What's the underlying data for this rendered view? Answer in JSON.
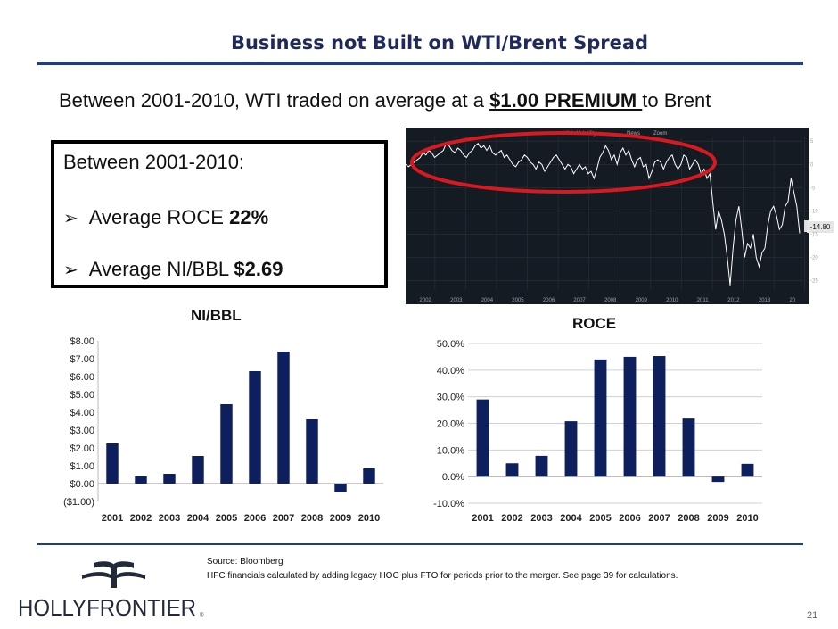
{
  "title": "Business not Built on WTI/Brent Spread",
  "subtitle": {
    "prefix": "Between 2001-2010, WTI traded on average at a ",
    "highlight": "$1.00 PREMIUM ",
    "suffix": "to Brent"
  },
  "kpi": {
    "heading": "Between 2001-2010:",
    "items": [
      {
        "label": "Average ROCE ",
        "value": "22%"
      },
      {
        "label": "Average NI/BBL ",
        "value": "$2.69"
      }
    ]
  },
  "colors": {
    "bar": "#0d1f5c",
    "title_rule": "#1f3c88",
    "highlight_ellipse": "#d8191f",
    "spread_bg": "#151b22",
    "spread_line": "#ffffff"
  },
  "spread_chart": {
    "legend": [
      "Hide Volatility",
      "News",
      "Zoom"
    ],
    "last_value_label": "-14.80",
    "x_ticks": [
      "2002",
      "2003",
      "2004",
      "2005",
      "2006",
      "2007",
      "2008",
      "2009",
      "2010",
      "2011",
      "2012",
      "2013",
      "20"
    ],
    "y_ticks": [
      "5",
      "0",
      "-5",
      "-10",
      "-15",
      "-20",
      "-25"
    ]
  },
  "footer": {
    "source": "Source: Bloomberg",
    "note": "HFC financials calculated by adding legacy HOC plus FTO for periods prior to the merger. See page 39 for calculations.",
    "logo_text": "HOLLYFRONTIER",
    "page_number": "21"
  },
  "chart_data": [
    {
      "type": "line",
      "name": "spread",
      "x_start": 2001.0,
      "x_end": 2013.9,
      "ylim": [
        -27,
        6
      ],
      "values": [
        0,
        -0.5,
        0,
        0.5,
        1,
        1.5,
        2.5,
        2,
        3,
        2.5,
        1.5,
        2,
        2.5,
        3,
        4.5,
        4,
        3,
        2.5,
        3.5,
        3,
        2,
        1.5,
        2.5,
        3,
        4,
        4.5,
        3.5,
        4,
        3,
        4,
        2.5,
        2,
        2.5,
        3,
        1.5,
        2,
        1,
        0,
        -0.5,
        0.5,
        1,
        2,
        1.5,
        0.5,
        0,
        -1,
        0.5,
        0,
        -1.5,
        -0.5,
        0.5,
        1.5,
        2,
        1,
        0,
        -1,
        0,
        -0.5,
        -2,
        -1,
        0,
        -1,
        -0.5,
        -2,
        -1.5,
        -3,
        -1,
        1.5,
        2.5,
        4,
        3,
        1,
        2,
        0,
        2.5,
        3.5,
        2,
        3,
        1,
        -0.5,
        1,
        1.5,
        -0.5,
        0,
        -3,
        -1.5,
        0.5,
        1,
        0.5,
        -1,
        0.5,
        1.5,
        2,
        0,
        -1,
        0,
        2,
        1.5,
        -1,
        0,
        1,
        0,
        -2,
        -1,
        -3,
        -2,
        -8,
        -14,
        -10,
        -12,
        -15,
        -20,
        -26,
        -18,
        -12,
        -9,
        -14,
        -20,
        -17,
        -18,
        -15,
        -20,
        -22,
        -19,
        -18,
        -13,
        -10,
        -9,
        -11,
        -14,
        -13,
        -9,
        -8,
        -3,
        -6,
        -9,
        -14.8
      ]
    },
    {
      "type": "bar",
      "title": "NI/BBL",
      "categories": [
        "2001",
        "2002",
        "2003",
        "2004",
        "2005",
        "2006",
        "2007",
        "2008",
        "2009",
        "2010"
      ],
      "values": [
        2.25,
        0.4,
        0.55,
        1.55,
        4.45,
        6.3,
        7.4,
        3.6,
        -0.5,
        0.85
      ],
      "ylim": [
        -1,
        8
      ],
      "y_ticks": [
        8,
        7,
        6,
        5,
        4,
        3,
        2,
        1,
        0,
        -1
      ],
      "y_tick_labels": [
        "$8.00",
        "$7.00",
        "$6.00",
        "$5.00",
        "$4.00",
        "$3.00",
        "$2.00",
        "$1.00",
        "$0.00",
        "($1.00)"
      ]
    },
    {
      "type": "bar",
      "title": "ROCE",
      "categories": [
        "2001",
        "2002",
        "2003",
        "2004",
        "2005",
        "2006",
        "2007",
        "2008",
        "2009",
        "2010"
      ],
      "values": [
        29.0,
        5.0,
        7.8,
        20.8,
        44.0,
        45.0,
        45.3,
        21.8,
        -2.0,
        4.8
      ],
      "ylim": [
        -10,
        50
      ],
      "y_ticks": [
        50,
        40,
        30,
        20,
        10,
        0,
        -10
      ],
      "y_tick_labels": [
        "50.0%",
        "40.0%",
        "30.0%",
        "20.0%",
        "10.0%",
        "0.0%",
        "-10.0%"
      ]
    }
  ]
}
